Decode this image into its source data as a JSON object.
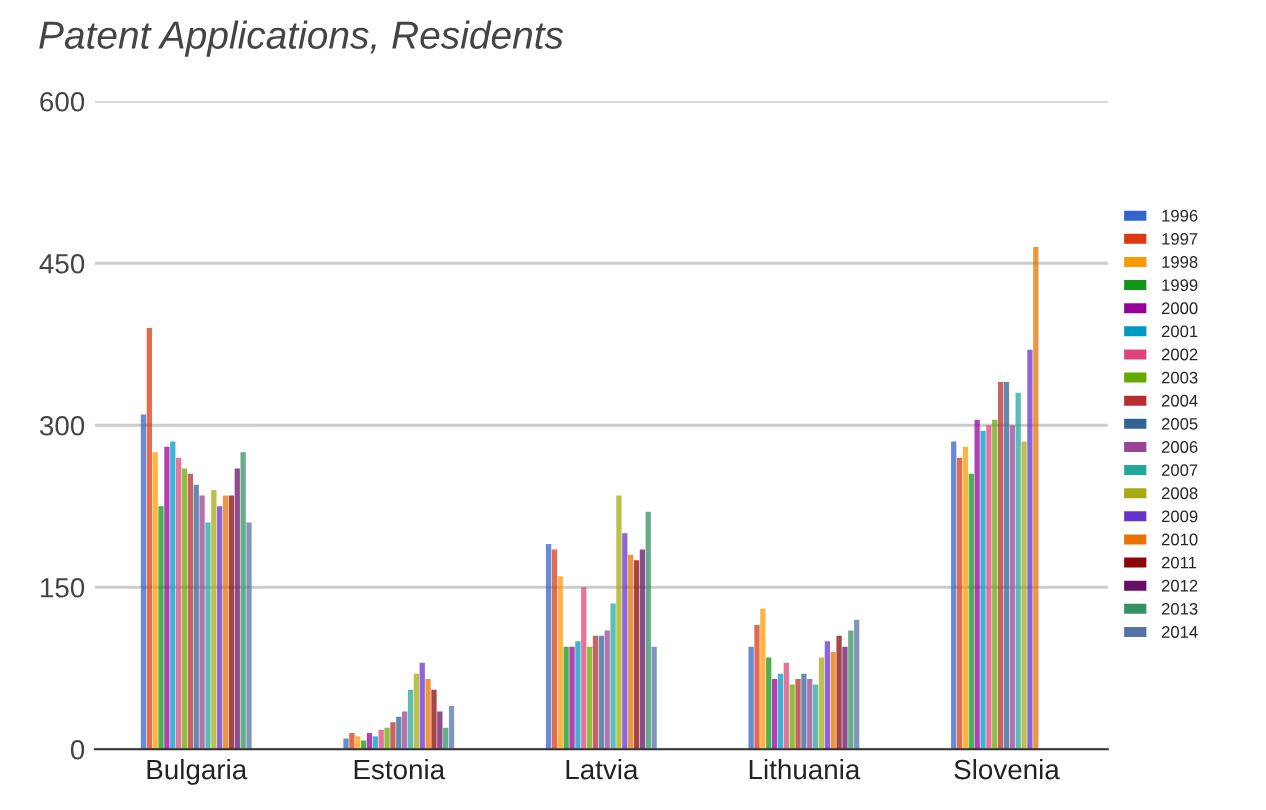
{
  "chart_data": {
    "type": "bar",
    "title": "Patent Applications, Residents",
    "categories": [
      "Bulgaria",
      "Estonia",
      "Latvia",
      "Lithuania",
      "Slovenia"
    ],
    "ylim": [
      0,
      600
    ],
    "yticks": [
      0,
      150,
      300,
      450,
      600
    ],
    "grid": "y",
    "legend": "right",
    "series": [
      {
        "name": "1996",
        "color": "#3366cc",
        "values": [
          310,
          10,
          190,
          95,
          285
        ]
      },
      {
        "name": "1997",
        "color": "#dc3912",
        "values": [
          390,
          15,
          185,
          115,
          270
        ]
      },
      {
        "name": "1998",
        "color": "#ff9900",
        "values": [
          275,
          12,
          160,
          130,
          280
        ]
      },
      {
        "name": "1999",
        "color": "#109618",
        "values": [
          225,
          8,
          95,
          85,
          255
        ]
      },
      {
        "name": "2000",
        "color": "#990099",
        "values": [
          280,
          15,
          95,
          65,
          305
        ]
      },
      {
        "name": "2001",
        "color": "#0099c6",
        "values": [
          285,
          12,
          100,
          70,
          295
        ]
      },
      {
        "name": "2002",
        "color": "#dd4477",
        "values": [
          270,
          18,
          150,
          80,
          300
        ]
      },
      {
        "name": "2003",
        "color": "#66aa00",
        "values": [
          260,
          20,
          95,
          60,
          305
        ]
      },
      {
        "name": "2004",
        "color": "#b82e2e",
        "values": [
          255,
          25,
          105,
          65,
          340
        ]
      },
      {
        "name": "2005",
        "color": "#316395",
        "values": [
          245,
          30,
          105,
          70,
          340
        ]
      },
      {
        "name": "2006",
        "color": "#994499",
        "values": [
          235,
          35,
          110,
          65,
          300
        ]
      },
      {
        "name": "2007",
        "color": "#22aa99",
        "values": [
          210,
          55,
          135,
          60,
          330
        ]
      },
      {
        "name": "2008",
        "color": "#aaaa11",
        "values": [
          240,
          70,
          235,
          85,
          285
        ]
      },
      {
        "name": "2009",
        "color": "#6633cc",
        "values": [
          225,
          80,
          200,
          100,
          370
        ]
      },
      {
        "name": "2010",
        "color": "#e67300",
        "values": [
          235,
          65,
          180,
          90,
          465
        ]
      },
      {
        "name": "2011",
        "color": "#8b0707",
        "values": [
          235,
          55,
          175,
          105,
          null
        ]
      },
      {
        "name": "2012",
        "color": "#651067",
        "values": [
          260,
          35,
          185,
          95,
          null
        ]
      },
      {
        "name": "2013",
        "color": "#329262",
        "values": [
          275,
          20,
          220,
          110,
          null
        ]
      },
      {
        "name": "2014",
        "color": "#5574a6",
        "values": [
          210,
          40,
          95,
          120,
          null
        ]
      }
    ]
  }
}
